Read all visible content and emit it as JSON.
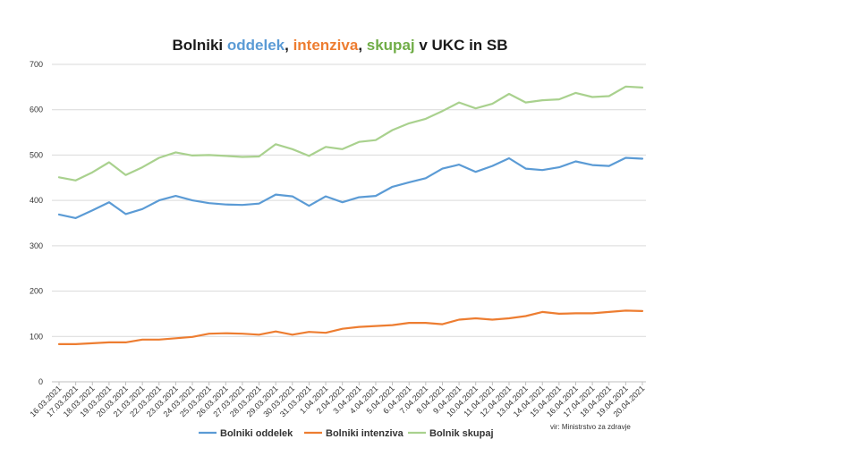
{
  "chart_data": {
    "type": "line",
    "title_parts": [
      "Bolniki ",
      "oddelek",
      ", ",
      "intenziva",
      ", ",
      "skupaj",
      " v UKC in SB"
    ],
    "title_colors": [
      "#1a1a1a",
      "#5b9bd5",
      "#1a1a1a",
      "#ed7d31",
      "#1a1a1a",
      "#70ad47",
      "#1a1a1a"
    ],
    "categories": [
      "16.03.2021",
      "17.03.2021",
      "18.03.2021",
      "19.03.2021",
      "20.03.2021",
      "21.03.2021",
      "22.03.2021",
      "23.03.2021",
      "24.03.2021",
      "25.03.2021",
      "26.03.2021",
      "27.03.2021",
      "28.03.2021",
      "29.03.2021",
      "30.03.2021",
      "31.03.2021",
      "1.04.2021",
      "2.04.2021",
      "3.04.2021",
      "4.04.2021",
      "5.04.2021",
      "6.04.2021",
      "7.04.2021",
      "8.04.2021",
      "9.04.2021",
      "10.04.2021",
      "11.04.2021",
      "12.04.2021",
      "13.04.2021",
      "14.04.2021",
      "15.04.2021",
      "16.04.2021",
      "17.04.2021",
      "18.04.2021",
      "19.04.2021",
      "20.04.2021"
    ],
    "series": [
      {
        "name": "Bolniki oddelek",
        "color": "#5b9bd5",
        "values": [
          369,
          361,
          378,
          396,
          370,
          381,
          400,
          410,
          400,
          394,
          391,
          390,
          393,
          413,
          409,
          388,
          409,
          396,
          407,
          410,
          430,
          440,
          449,
          470,
          479,
          463,
          476,
          493,
          470,
          467,
          473,
          486,
          478,
          476,
          494,
          492
        ]
      },
      {
        "name": "Bolniki intenziva",
        "color": "#ed7d31",
        "values": [
          83,
          83,
          85,
          87,
          87,
          93,
          93,
          96,
          99,
          106,
          107,
          106,
          104,
          111,
          104,
          110,
          108,
          117,
          121,
          123,
          125,
          130,
          130,
          127,
          137,
          140,
          137,
          140,
          145,
          154,
          150,
          151,
          151,
          154,
          157,
          156
        ]
      },
      {
        "name": "Bolnik skupaj",
        "color": "#a9d18e",
        "values": [
          451,
          444,
          462,
          484,
          456,
          473,
          494,
          506,
          499,
          500,
          498,
          496,
          497,
          524,
          513,
          498,
          518,
          513,
          529,
          533,
          555,
          570,
          580,
          597,
          616,
          603,
          613,
          635,
          616,
          621,
          623,
          637,
          628,
          630,
          651,
          649
        ]
      }
    ],
    "yticks": [
      "0",
      "100",
      "200",
      "300",
      "400",
      "500",
      "600",
      "700"
    ],
    "ylim": [
      0,
      700
    ],
    "grid": true,
    "legend_position": "bottom",
    "source": "vir: Ministrstvo za zdravje"
  }
}
